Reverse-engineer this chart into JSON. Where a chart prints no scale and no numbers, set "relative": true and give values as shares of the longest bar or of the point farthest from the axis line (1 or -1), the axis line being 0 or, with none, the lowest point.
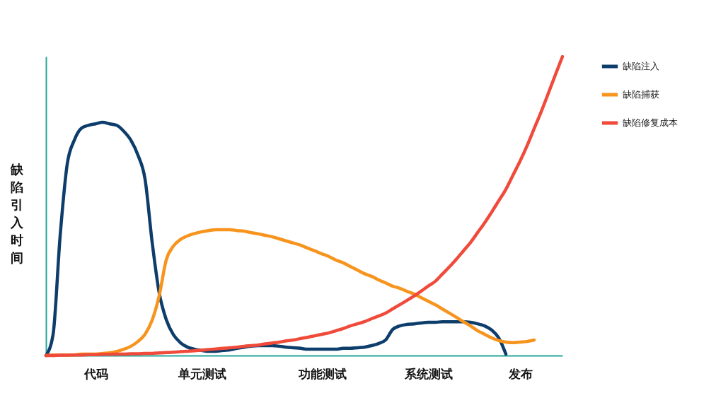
{
  "chart_data": {
    "type": "line",
    "relative": true,
    "ylabel": "缺陷引入时间",
    "legend": "right",
    "grid": false,
    "categories": [
      null,
      null,
      null,
      null,
      null,
      null,
      null,
      "代码",
      null,
      null,
      null,
      null,
      null,
      null,
      null,
      null,
      null,
      null,
      null,
      null,
      null,
      null,
      "单元测试",
      null,
      null,
      null,
      null,
      null,
      null,
      null,
      null,
      null,
      null,
      null,
      null,
      null,
      null,
      null,
      null,
      "功能测试",
      null,
      null,
      null,
      null,
      null,
      null,
      null,
      null,
      null,
      null,
      null,
      null,
      null,
      null,
      "系统测试",
      null,
      null,
      null,
      null,
      null,
      null,
      null,
      null,
      null,
      null,
      null,
      null,
      "发布",
      null,
      null,
      null,
      null,
      null,
      null
    ],
    "series": [
      {
        "name": "缺陷注入",
        "color": "#0d3d6b",
        "values": [
          0,
          0.07,
          0.4,
          0.64,
          0.72,
          0.76,
          0.77,
          0.775,
          0.78,
          0.775,
          0.77,
          0.75,
          0.72,
          0.67,
          0.59,
          0.38,
          0.21,
          0.12,
          0.07,
          0.043,
          0.028,
          0.021,
          0.017,
          0.014,
          0.014,
          0.017,
          0.019,
          0.024,
          0.028,
          0.031,
          0.033,
          0.033,
          0.033,
          0.031,
          0.028,
          0.026,
          0.024,
          0.021,
          0.021,
          0.021,
          0.021,
          0.021,
          0.024,
          0.024,
          0.026,
          0.028,
          0.033,
          0.04,
          0.052,
          0.087,
          0.099,
          0.104,
          0.106,
          0.109,
          0.111,
          0.111,
          0.113,
          0.113,
          0.113,
          0.113,
          0.111,
          0.106,
          0.099,
          0.085,
          0.059,
          0.005,
          null,
          null,
          null,
          null,
          null,
          null,
          null,
          null
        ]
      },
      {
        "name": "缺陷捕获",
        "color": "#f7941d",
        "values": [
          0,
          0.002,
          0.002,
          0.002,
          0.002,
          0.005,
          0.005,
          0.005,
          0.007,
          0.009,
          0.014,
          0.021,
          0.031,
          0.047,
          0.071,
          0.118,
          0.2,
          0.32,
          0.366,
          0.388,
          0.4,
          0.408,
          0.414,
          0.418,
          0.421,
          0.421,
          0.421,
          0.418,
          0.416,
          0.411,
          0.407,
          0.402,
          0.397,
          0.39,
          0.383,
          0.376,
          0.369,
          0.359,
          0.35,
          0.34,
          0.331,
          0.319,
          0.31,
          0.298,
          0.286,
          0.274,
          0.265,
          0.253,
          0.243,
          0.232,
          0.225,
          0.215,
          0.206,
          0.194,
          0.182,
          0.17,
          0.156,
          0.142,
          0.128,
          0.113,
          0.099,
          0.083,
          0.071,
          0.059,
          0.05,
          0.045,
          0.043,
          0.045,
          0.047,
          0.052,
          null,
          null,
          null,
          null
        ]
      },
      {
        "name": "缺陷修复成本",
        "color": "#f04a3a",
        "values": [
          0,
          0,
          0.001,
          0.001,
          0.002,
          0.002,
          0.003,
          0.003,
          0.004,
          0.004,
          0.005,
          0.005,
          0.006,
          0.006,
          0.007,
          0.007,
          0.009,
          0.01,
          0.011,
          0.013,
          0.014,
          0.016,
          0.018,
          0.02,
          0.022,
          0.024,
          0.026,
          0.028,
          0.031,
          0.033,
          0.035,
          0.039,
          0.042,
          0.045,
          0.049,
          0.052,
          0.057,
          0.061,
          0.066,
          0.071,
          0.076,
          0.083,
          0.09,
          0.099,
          0.106,
          0.113,
          0.123,
          0.132,
          0.142,
          0.156,
          0.17,
          0.184,
          0.199,
          0.215,
          0.232,
          0.248,
          0.272,
          0.296,
          0.322,
          0.35,
          0.378,
          0.411,
          0.444,
          0.48,
          0.518,
          0.556,
          0.603,
          0.65,
          0.702,
          0.759,
          0.816,
          0.877,
          0.939,
          1
        ]
      }
    ]
  }
}
